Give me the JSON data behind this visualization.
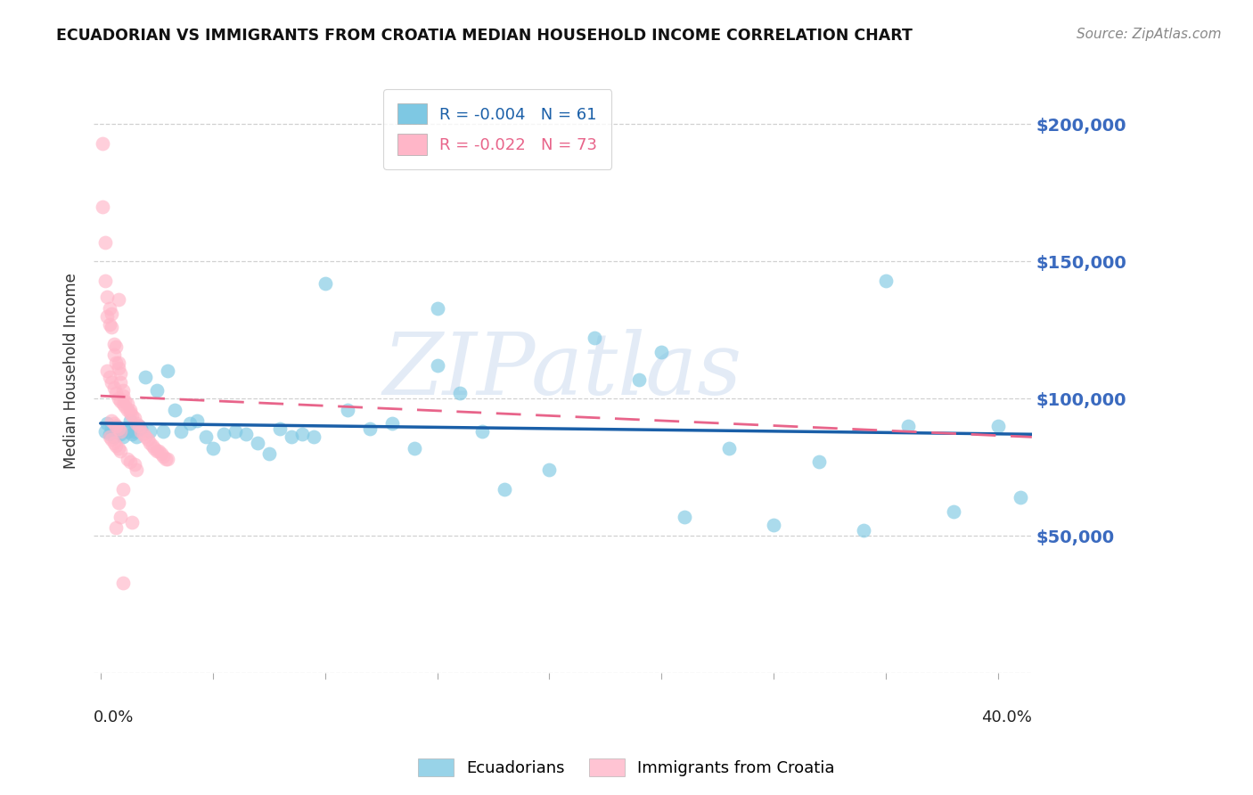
{
  "title": "ECUADORIAN VS IMMIGRANTS FROM CROATIA MEDIAN HOUSEHOLD INCOME CORRELATION CHART",
  "source": "Source: ZipAtlas.com",
  "ylabel": "Median Household Income",
  "yticks": [
    0,
    50000,
    100000,
    150000,
    200000
  ],
  "ytick_labels": [
    "",
    "$50,000",
    "$100,000",
    "$150,000",
    "$200,000"
  ],
  "ylim": [
    0,
    220000
  ],
  "xlim": [
    -0.003,
    0.415
  ],
  "blue_color": "#7ec8e3",
  "pink_color": "#ffb6c8",
  "blue_line_color": "#1a5fa8",
  "pink_line_color": "#e8648a",
  "watermark": "ZIPatlas",
  "blue_scatter_x": [
    0.002,
    0.003,
    0.004,
    0.005,
    0.006,
    0.007,
    0.008,
    0.009,
    0.01,
    0.011,
    0.012,
    0.013,
    0.014,
    0.015,
    0.016,
    0.017,
    0.018,
    0.02,
    0.022,
    0.025,
    0.028,
    0.03,
    0.033,
    0.036,
    0.04,
    0.043,
    0.047,
    0.05,
    0.055,
    0.06,
    0.065,
    0.07,
    0.075,
    0.08,
    0.085,
    0.09,
    0.095,
    0.1,
    0.11,
    0.12,
    0.13,
    0.14,
    0.15,
    0.16,
    0.17,
    0.18,
    0.2,
    0.22,
    0.24,
    0.26,
    0.28,
    0.3,
    0.32,
    0.34,
    0.36,
    0.38,
    0.4,
    0.15,
    0.25,
    0.35,
    0.41
  ],
  "blue_scatter_y": [
    88000,
    91000,
    87000,
    89000,
    86000,
    90000,
    88000,
    87000,
    86000,
    89000,
    88000,
    92000,
    87000,
    88000,
    86000,
    90000,
    89000,
    108000,
    88000,
    103000,
    88000,
    110000,
    96000,
    88000,
    91000,
    92000,
    86000,
    82000,
    87000,
    88000,
    87000,
    84000,
    80000,
    89000,
    86000,
    87000,
    86000,
    142000,
    96000,
    89000,
    91000,
    82000,
    112000,
    102000,
    88000,
    67000,
    74000,
    122000,
    107000,
    57000,
    82000,
    54000,
    77000,
    52000,
    90000,
    59000,
    90000,
    133000,
    117000,
    143000,
    64000
  ],
  "pink_scatter_x": [
    0.001,
    0.001,
    0.002,
    0.002,
    0.003,
    0.003,
    0.004,
    0.004,
    0.005,
    0.005,
    0.006,
    0.006,
    0.007,
    0.007,
    0.008,
    0.008,
    0.008,
    0.009,
    0.009,
    0.01,
    0.01,
    0.011,
    0.012,
    0.013,
    0.014,
    0.015,
    0.016,
    0.017,
    0.018,
    0.019,
    0.02,
    0.021,
    0.022,
    0.023,
    0.024,
    0.025,
    0.026,
    0.027,
    0.028,
    0.029,
    0.03,
    0.003,
    0.004,
    0.005,
    0.006,
    0.007,
    0.008,
    0.009,
    0.01,
    0.011,
    0.012,
    0.013,
    0.005,
    0.006,
    0.007,
    0.008,
    0.009,
    0.004,
    0.005,
    0.006,
    0.007,
    0.008,
    0.009,
    0.012,
    0.013,
    0.015,
    0.016,
    0.007,
    0.01,
    0.009,
    0.008,
    0.014,
    0.01
  ],
  "pink_scatter_y": [
    193000,
    170000,
    157000,
    143000,
    137000,
    130000,
    133000,
    127000,
    131000,
    126000,
    120000,
    116000,
    119000,
    113000,
    113000,
    111000,
    136000,
    109000,
    106000,
    103000,
    101000,
    99000,
    98000,
    96000,
    94000,
    93000,
    91000,
    90000,
    88000,
    87000,
    86000,
    85000,
    84000,
    83000,
    82000,
    81000,
    81000,
    80000,
    79000,
    78000,
    78000,
    110000,
    108000,
    106000,
    104000,
    102000,
    100000,
    99000,
    98000,
    97000,
    96000,
    95000,
    92000,
    91000,
    90000,
    89000,
    88000,
    86000,
    85000,
    84000,
    83000,
    82000,
    81000,
    78000,
    77000,
    76000,
    74000,
    53000,
    67000,
    57000,
    62000,
    55000,
    33000
  ],
  "blue_trendline_x": [
    0.0,
    0.415
  ],
  "blue_trendline_y": [
    91000,
    87000
  ],
  "pink_trendline_x": [
    0.0,
    0.415
  ],
  "pink_trendline_y": [
    101000,
    86000
  ]
}
